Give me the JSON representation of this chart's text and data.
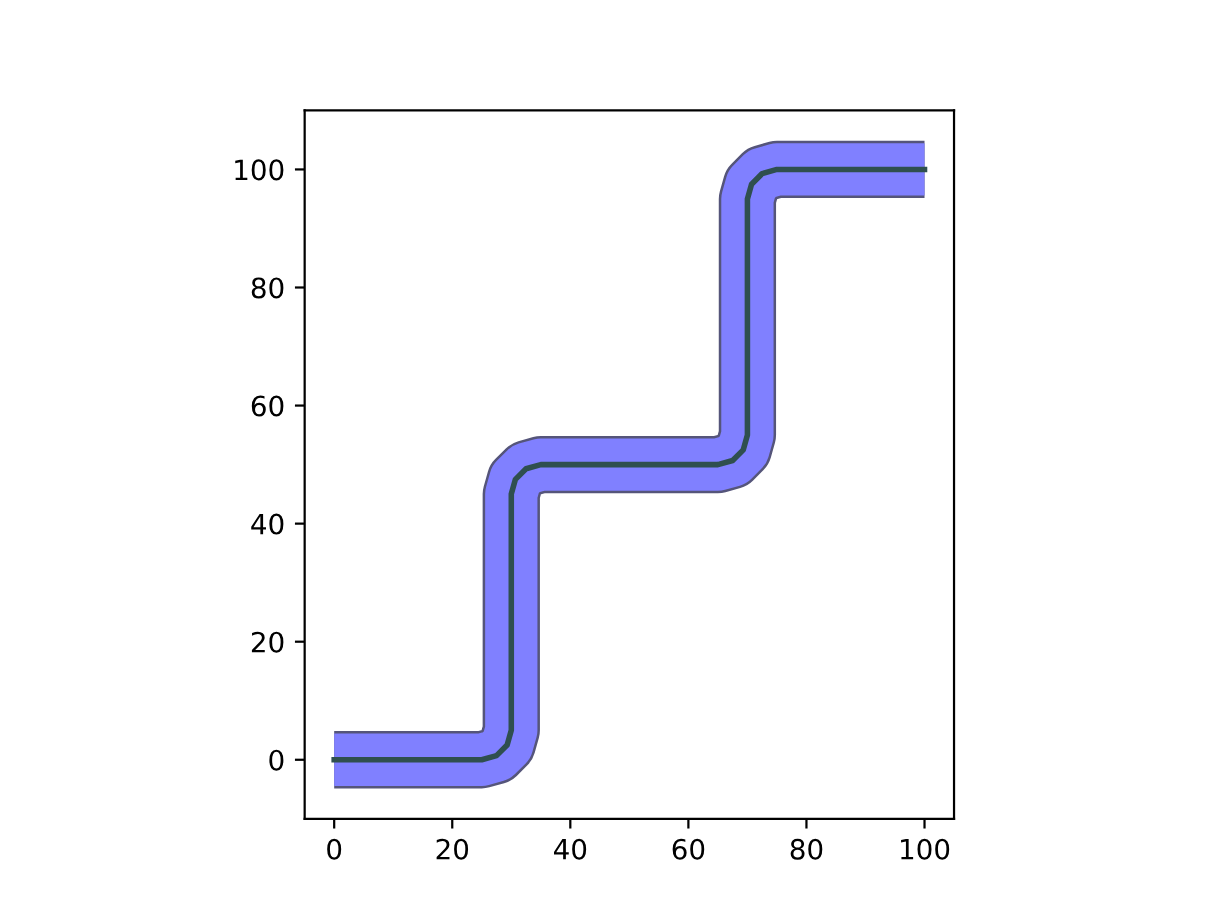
{
  "chart_data": {
    "type": "line",
    "series": [
      {
        "color": "#8080ff",
        "x": [
          0,
          25,
          27.5,
          29.3,
          30,
          30,
          30.7,
          32.5,
          35,
          65,
          67.5,
          69.3,
          70,
          70,
          70.7,
          72.5,
          75,
          100
        ],
        "values": [
          0,
          0,
          0.7,
          2.5,
          5,
          45,
          47.5,
          49.3,
          50,
          50,
          50.7,
          52.5,
          55,
          95,
          97.5,
          99.3,
          100,
          100
        ]
      },
      {
        "color": "#2f4f4f",
        "x": [
          0,
          25,
          27.5,
          29.3,
          30,
          30,
          30.7,
          32.5,
          35,
          65,
          67.5,
          69.3,
          70,
          70,
          70.7,
          72.5,
          75,
          100
        ],
        "values": [
          0,
          0,
          0.7,
          2.5,
          5,
          45,
          47.5,
          49.3,
          50,
          50,
          50.7,
          52.5,
          55,
          95,
          97.5,
          99.3,
          100,
          100
        ]
      }
    ],
    "xlim": [
      -5,
      105
    ],
    "ylim": [
      -10,
      110
    ],
    "xticks": [
      0,
      20,
      40,
      60,
      80,
      100
    ],
    "yticks": [
      0,
      20,
      40,
      60,
      80,
      100
    ],
    "grid": false,
    "legend": false
  }
}
